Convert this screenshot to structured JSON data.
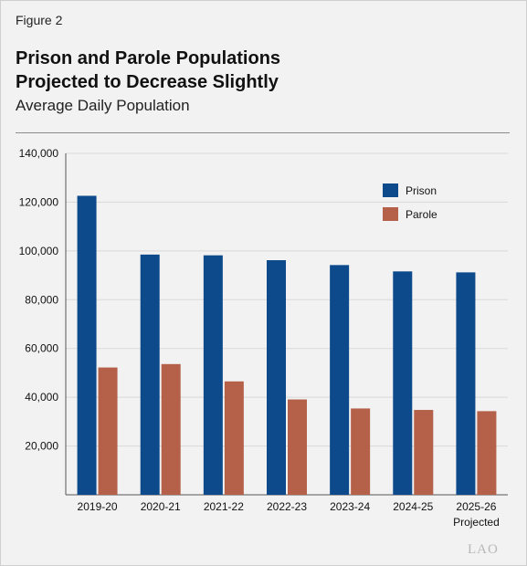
{
  "figure_label": "Figure 2",
  "title_line1": "Prison and Parole Populations",
  "title_line2": "Projected to Decrease Slightly",
  "subtitle": "Average Daily Population",
  "source_mark": "LAO",
  "colors": {
    "prison": "#0d4a8c",
    "parole": "#b5614a",
    "grid": "#d9d9d9"
  },
  "chart_data": {
    "type": "bar",
    "categories": [
      "2019-20",
      "2020-21",
      "2021-22",
      "2022-23",
      "2023-24",
      "2024-25",
      "2025-26"
    ],
    "category_notes": [
      "",
      "",
      "",
      "",
      "",
      "",
      "Projected"
    ],
    "series": [
      {
        "name": "Prison",
        "values": [
          122600,
          98500,
          98200,
          96200,
          94200,
          91600,
          91200
        ]
      },
      {
        "name": "Parole",
        "values": [
          52200,
          53600,
          46500,
          39100,
          35400,
          34800,
          34300
        ]
      }
    ],
    "yticks": [
      "20,000",
      "40,000",
      "60,000",
      "80,000",
      "100,000",
      "120,000",
      "140,000"
    ],
    "ytick_values": [
      20000,
      40000,
      60000,
      80000,
      100000,
      120000,
      140000
    ],
    "ylim": [
      0,
      140000
    ],
    "grid": true,
    "legend_position": "top-right"
  }
}
